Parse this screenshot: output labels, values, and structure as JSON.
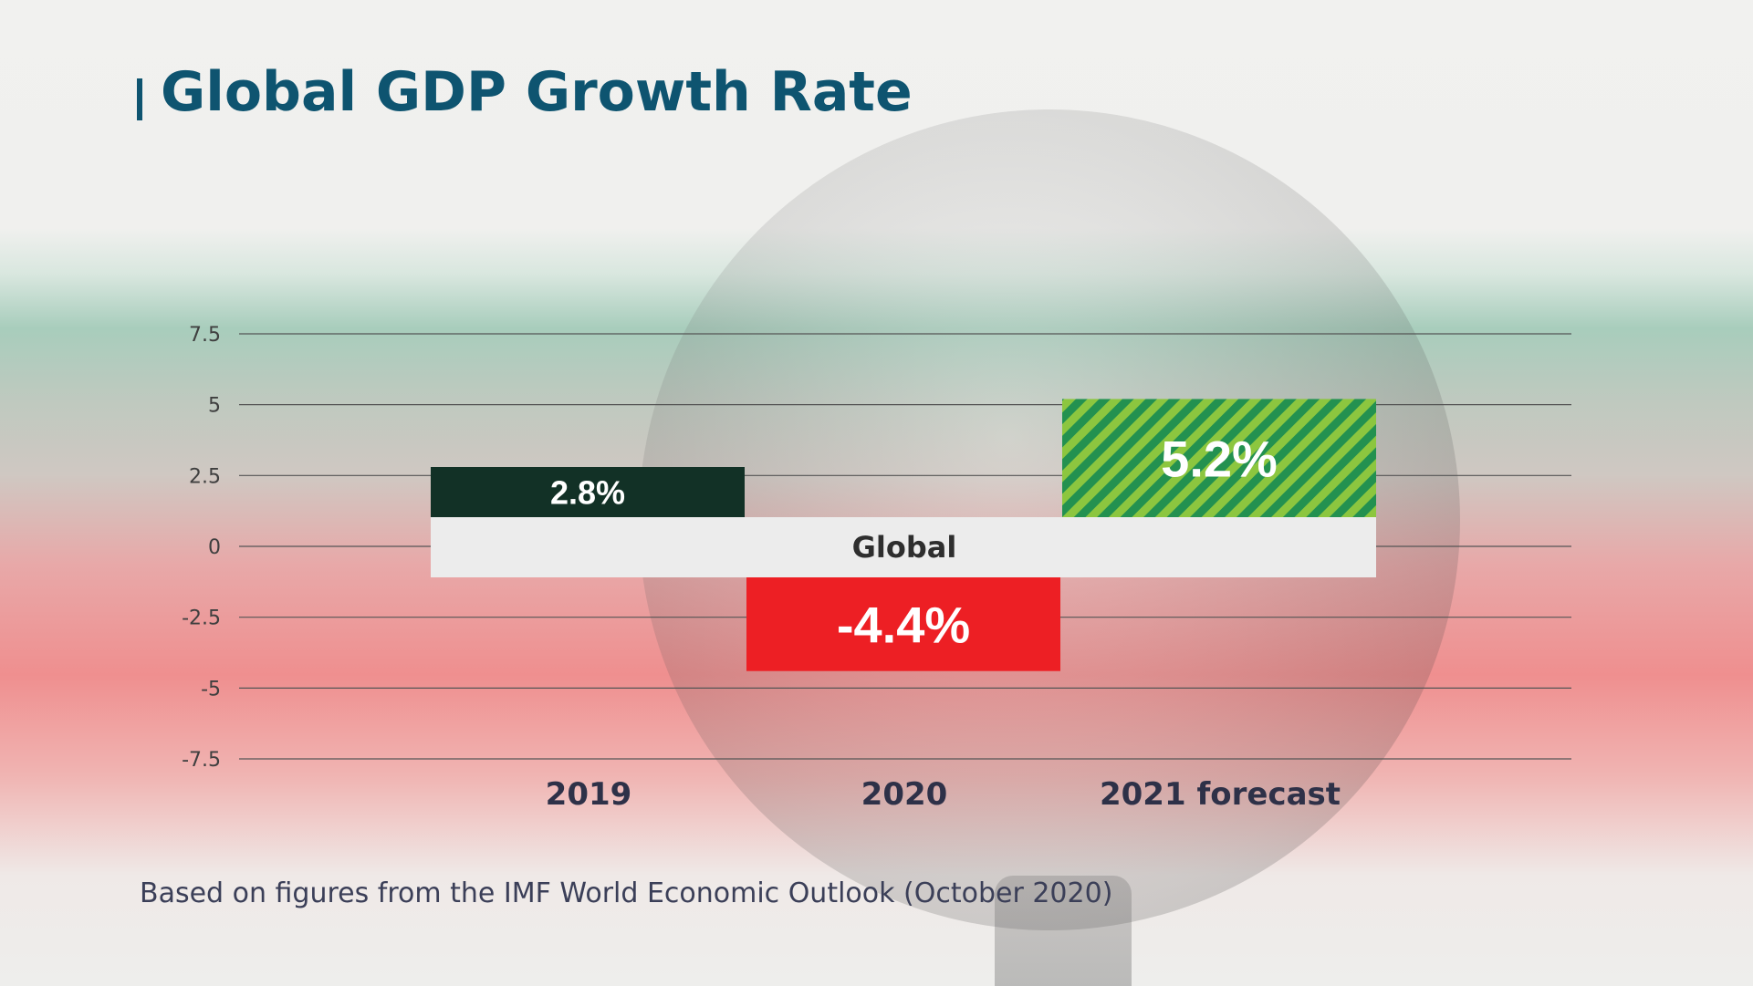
{
  "title": "Global GDP Growth Rate",
  "caption": "Based on figures from the IMF World Economic Outlook (October 2020)",
  "colors": {
    "title": "#0e5470",
    "bar_2019": "#123126",
    "bar_2020": "#ed1f24",
    "bar_2021_a": "#239150",
    "bar_2021_b": "#8cc63f",
    "band": "#ececec",
    "gridline": "#555555"
  },
  "chart_data": {
    "type": "bar",
    "title": "Global GDP Growth Rate",
    "xlabel": "",
    "ylabel": "",
    "ylim": [
      -7.5,
      7.5
    ],
    "yticks": [
      7.5,
      5,
      2.5,
      0,
      -2.5,
      -5,
      -7.5
    ],
    "ytick_labels": [
      "7.5",
      "5",
      "2.5",
      "0",
      "-2.5",
      "-5",
      "-7.5"
    ],
    "categories": [
      "2019",
      "2020",
      "2021 forecast"
    ],
    "series": [
      {
        "name": "Global",
        "values": [
          2.8,
          -4.4,
          5.2
        ],
        "labels": [
          "2.8%",
          "-4.4%",
          "5.2%"
        ]
      }
    ],
    "band_label": "Global",
    "grid": true,
    "legend": "none"
  }
}
